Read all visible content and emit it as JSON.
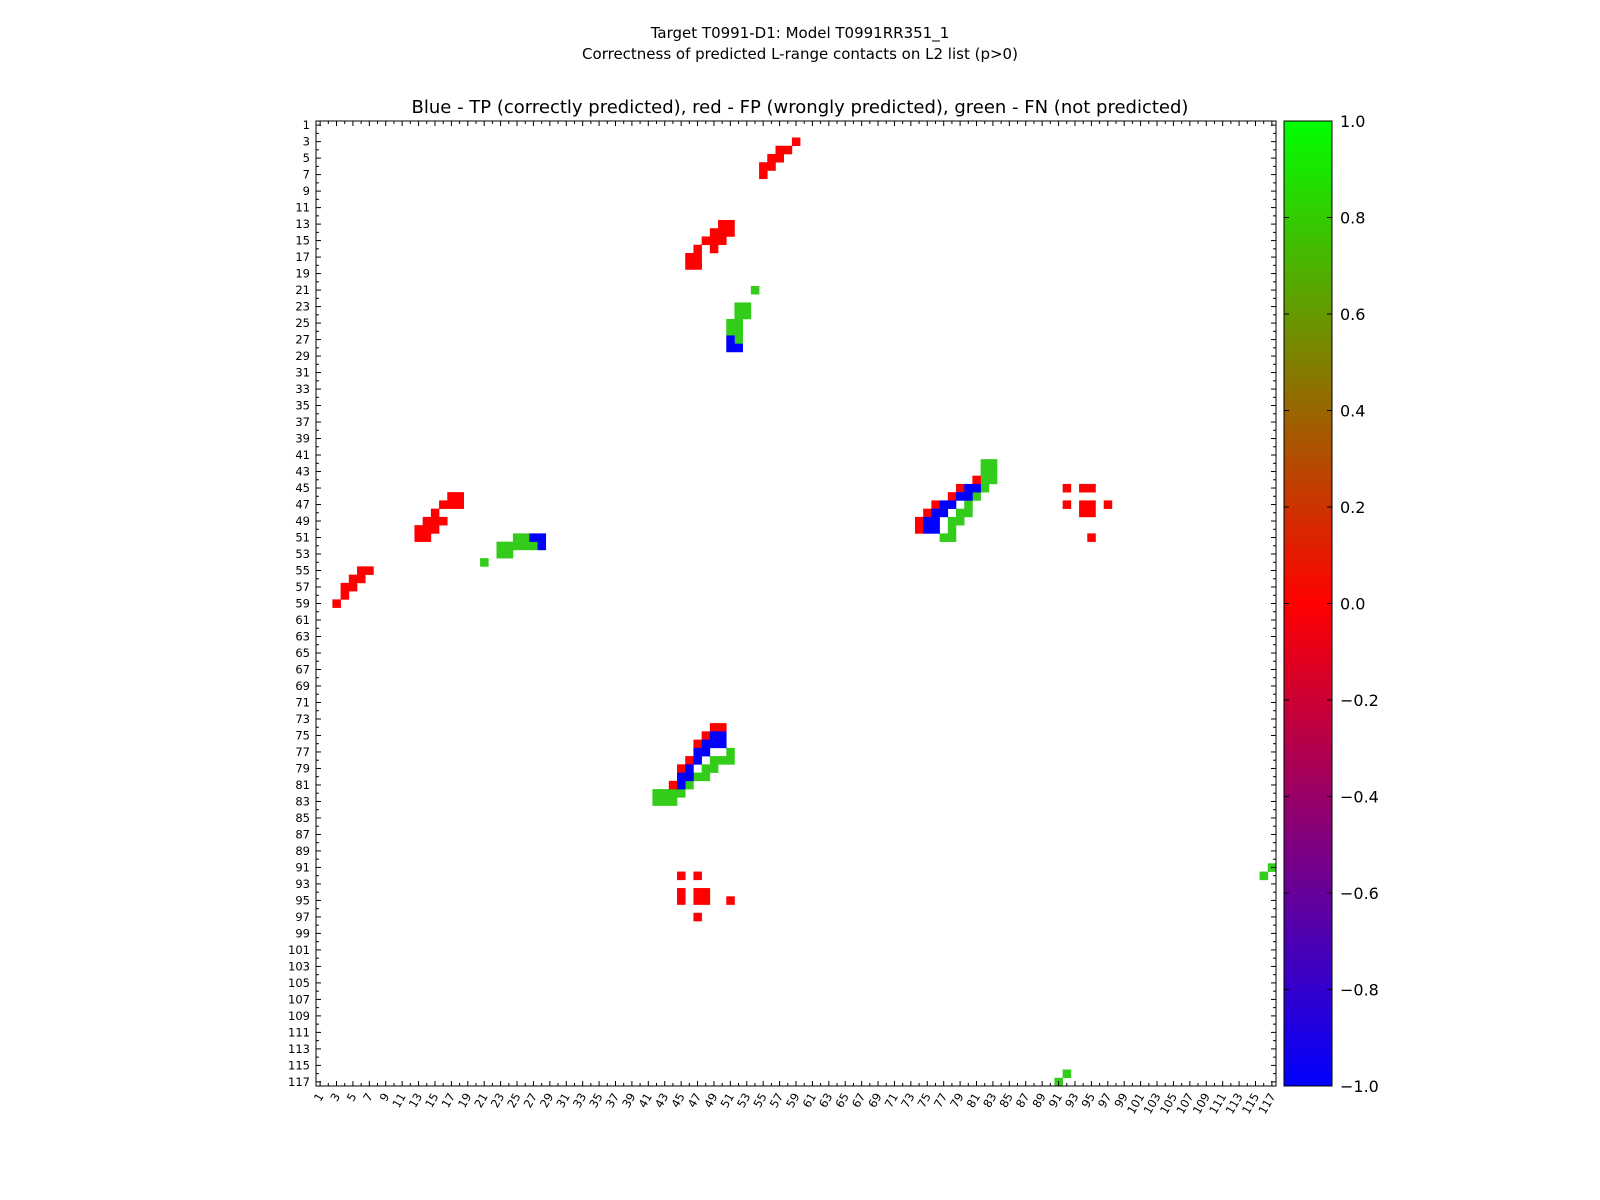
{
  "chart_data": {
    "type": "heatmap",
    "suptitle_line1": "Target T0991-D1: Model T0991RR351_1",
    "suptitle_line2": "Correctness of predicted L-range contacts on L2 list (p>0)",
    "title": "Blue - TP (correctly predicted), red - FP (wrongly predicted), green - FN (not predicted)",
    "xlabel": "",
    "ylabel": "",
    "n_residues": 117,
    "xlim": [
      1,
      117
    ],
    "ylim": [
      1,
      117
    ],
    "tick_step": 2,
    "grid": false,
    "value_encoding": {
      "TP": -1,
      "FP": 0,
      "FN": 0.8
    },
    "colorbar": {
      "min": -1.0,
      "max": 1.0,
      "ticks": [
        "−1.0",
        "−0.8",
        "−0.6",
        "−0.4",
        "−0.2",
        "0.0",
        "0.2",
        "0.4",
        "0.6",
        "0.8",
        "1.0"
      ],
      "ticks_values": [
        -1.0,
        -0.8,
        -0.6,
        -0.4,
        -0.2,
        0.0,
        0.2,
        0.4,
        0.6,
        0.8,
        1.0
      ],
      "color_stops": [
        "#0000ff",
        "#ff0000",
        "#00ff00"
      ]
    },
    "colors": {
      "TP": "#0000ff",
      "FP": "#ff0000",
      "FN": "#33cc1a"
    },
    "cells": {
      "TP": [
        [
          27,
          51
        ],
        [
          51,
          27
        ],
        [
          28,
          51
        ],
        [
          51,
          28
        ],
        [
          28,
          52
        ],
        [
          52,
          28
        ],
        [
          45,
          80
        ],
        [
          80,
          45
        ],
        [
          45,
          81
        ],
        [
          81,
          45
        ],
        [
          46,
          79
        ],
        [
          79,
          46
        ],
        [
          46,
          80
        ],
        [
          80,
          46
        ],
        [
          47,
          77
        ],
        [
          77,
          47
        ],
        [
          47,
          78
        ],
        [
          78,
          47
        ],
        [
          48,
          76
        ],
        [
          76,
          48
        ],
        [
          48,
          77
        ],
        [
          77,
          48
        ],
        [
          49,
          75
        ],
        [
          75,
          49
        ],
        [
          49,
          76
        ],
        [
          76,
          49
        ],
        [
          50,
          75
        ],
        [
          75,
          50
        ],
        [
          50,
          76
        ],
        [
          76,
          50
        ]
      ],
      "FP": [
        [
          3,
          59
        ],
        [
          59,
          3
        ],
        [
          4,
          58
        ],
        [
          58,
          4
        ],
        [
          4,
          57
        ],
        [
          57,
          4
        ],
        [
          5,
          57
        ],
        [
          57,
          5
        ],
        [
          5,
          56
        ],
        [
          56,
          5
        ],
        [
          6,
          56
        ],
        [
          56,
          6
        ],
        [
          6,
          55
        ],
        [
          55,
          6
        ],
        [
          7,
          55
        ],
        [
          55,
          7
        ],
        [
          13,
          50
        ],
        [
          50,
          13
        ],
        [
          13,
          51
        ],
        [
          51,
          13
        ],
        [
          14,
          49
        ],
        [
          49,
          14
        ],
        [
          14,
          50
        ],
        [
          50,
          14
        ],
        [
          14,
          51
        ],
        [
          51,
          14
        ],
        [
          15,
          48
        ],
        [
          48,
          15
        ],
        [
          15,
          49
        ],
        [
          49,
          15
        ],
        [
          15,
          50
        ],
        [
          50,
          15
        ],
        [
          16,
          47
        ],
        [
          47,
          16
        ],
        [
          16,
          49
        ],
        [
          49,
          16
        ],
        [
          17,
          46
        ],
        [
          46,
          17
        ],
        [
          17,
          47
        ],
        [
          47,
          17
        ],
        [
          18,
          46
        ],
        [
          46,
          18
        ],
        [
          18,
          47
        ],
        [
          47,
          18
        ],
        [
          44,
          81
        ],
        [
          81,
          44
        ],
        [
          45,
          79
        ],
        [
          79,
          45
        ],
        [
          46,
          78
        ],
        [
          78,
          46
        ],
        [
          47,
          76
        ],
        [
          76,
          47
        ],
        [
          48,
          75
        ],
        [
          75,
          48
        ],
        [
          49,
          74
        ],
        [
          74,
          49
        ],
        [
          50,
          74
        ],
        [
          74,
          50
        ],
        [
          45,
          92
        ],
        [
          92,
          45
        ],
        [
          45,
          94
        ],
        [
          94,
          45
        ],
        [
          45,
          95
        ],
        [
          95,
          45
        ],
        [
          47,
          92
        ],
        [
          92,
          47
        ],
        [
          47,
          94
        ],
        [
          94,
          47
        ],
        [
          47,
          95
        ],
        [
          95,
          47
        ],
        [
          47,
          97
        ],
        [
          97,
          47
        ],
        [
          48,
          94
        ],
        [
          94,
          48
        ],
        [
          48,
          95
        ],
        [
          95,
          48
        ],
        [
          51,
          95
        ],
        [
          95,
          51
        ]
      ],
      "FN": [
        [
          21,
          54
        ],
        [
          54,
          21
        ],
        [
          23,
          52
        ],
        [
          52,
          23
        ],
        [
          23,
          53
        ],
        [
          53,
          23
        ],
        [
          24,
          52
        ],
        [
          52,
          24
        ],
        [
          24,
          53
        ],
        [
          53,
          24
        ],
        [
          25,
          51
        ],
        [
          51,
          25
        ],
        [
          25,
          52
        ],
        [
          52,
          25
        ],
        [
          26,
          51
        ],
        [
          51,
          26
        ],
        [
          26,
          52
        ],
        [
          52,
          26
        ],
        [
          27,
          52
        ],
        [
          52,
          27
        ],
        [
          42,
          82
        ],
        [
          82,
          42
        ],
        [
          42,
          83
        ],
        [
          83,
          42
        ],
        [
          43,
          82
        ],
        [
          82,
          43
        ],
        [
          43,
          83
        ],
        [
          83,
          43
        ],
        [
          44,
          82
        ],
        [
          82,
          44
        ],
        [
          44,
          83
        ],
        [
          83,
          44
        ],
        [
          45,
          82
        ],
        [
          82,
          45
        ],
        [
          46,
          81
        ],
        [
          81,
          46
        ],
        [
          47,
          80
        ],
        [
          80,
          47
        ],
        [
          48,
          79
        ],
        [
          79,
          48
        ],
        [
          48,
          80
        ],
        [
          80,
          48
        ],
        [
          49,
          78
        ],
        [
          78,
          49
        ],
        [
          49,
          79
        ],
        [
          79,
          49
        ],
        [
          50,
          78
        ],
        [
          78,
          50
        ],
        [
          51,
          77
        ],
        [
          77,
          51
        ],
        [
          51,
          78
        ],
        [
          78,
          51
        ],
        [
          91,
          117
        ],
        [
          117,
          91
        ],
        [
          92,
          116
        ],
        [
          116,
          92
        ]
      ]
    }
  }
}
